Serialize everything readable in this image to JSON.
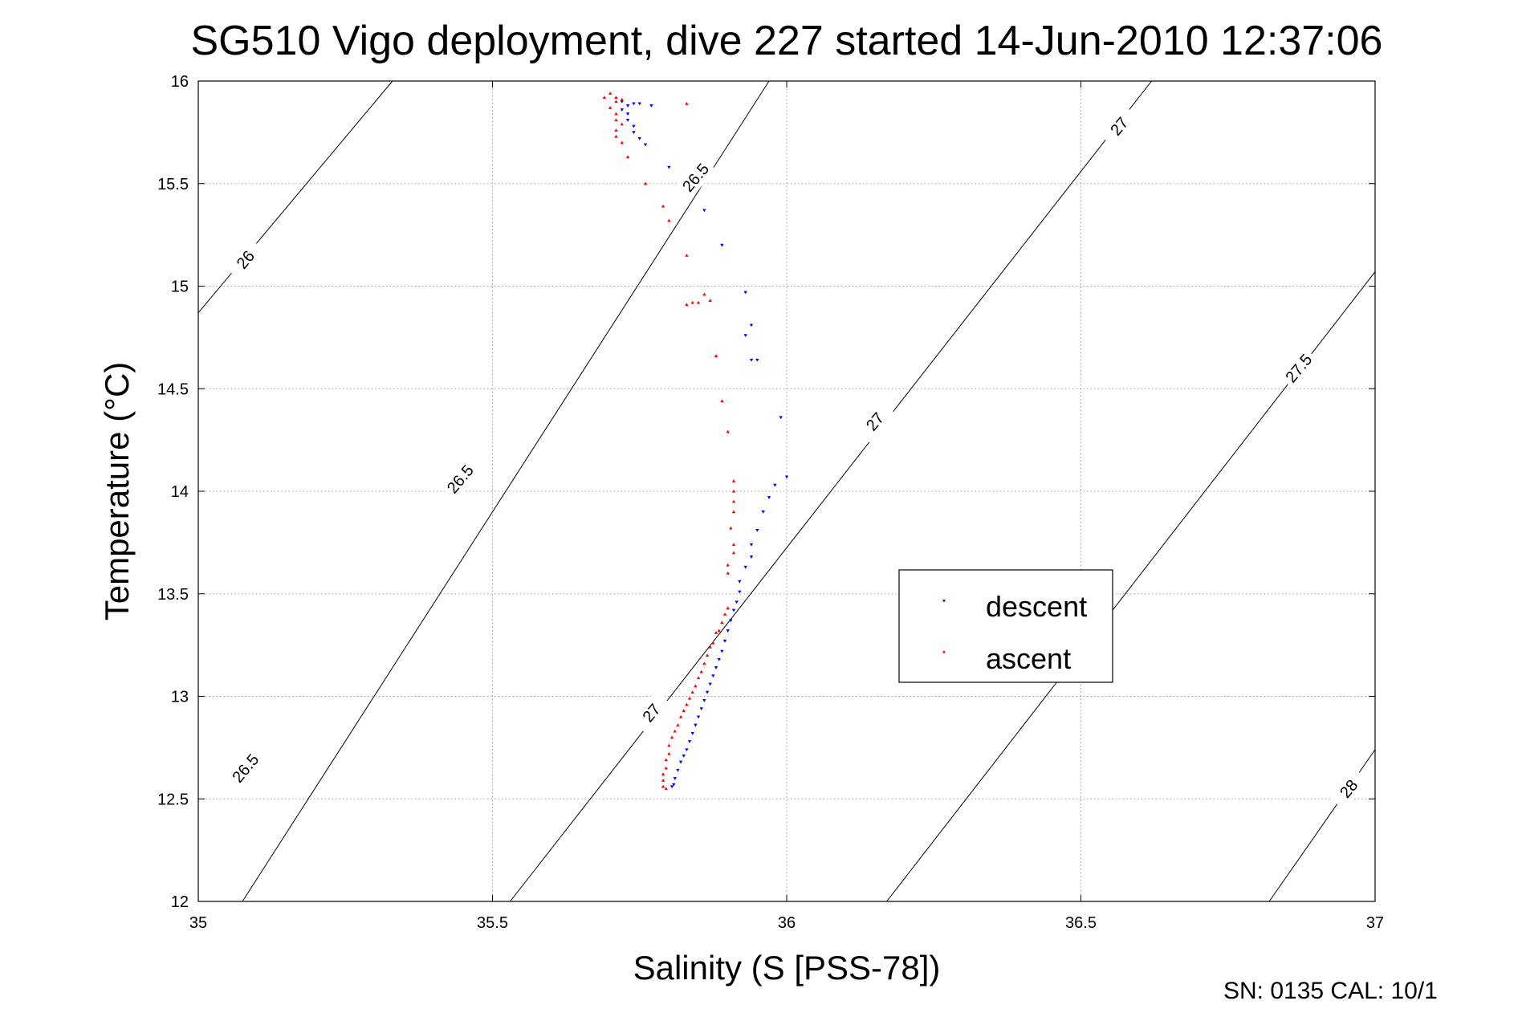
{
  "chart_data": {
    "type": "scatter",
    "title": "SG510 Vigo deployment, dive 227 started 14-Jun-2010 12:37:06",
    "xlabel": "Salinity (S [PSS-78])",
    "ylabel": "Temperature (°C)",
    "xlim": [
      35,
      37
    ],
    "ylim": [
      12,
      16
    ],
    "xticks": [
      35,
      35.5,
      36,
      36.5,
      37
    ],
    "xtick_labels": [
      "35",
      "35.5",
      "36",
      "36.5",
      "37"
    ],
    "yticks": [
      12,
      12.5,
      13,
      13.5,
      14,
      14.5,
      15,
      15.5,
      16
    ],
    "ytick_labels": [
      "12",
      "12.5",
      "13",
      "13.5",
      "14",
      "14.5",
      "15",
      "15.5",
      "16"
    ],
    "grid": true,
    "legend_position": "center-right",
    "footer": "SN: 0135  CAL: 10/1",
    "isopycnals": [
      {
        "label": "26",
        "points": [
          [
            35,
            14.87
          ],
          [
            35.33,
            16
          ]
        ],
        "label_at": [
          35.08,
          15.13
        ]
      },
      {
        "label": "26.5",
        "points": [
          [
            35.075,
            12
          ],
          [
            35.97,
            16
          ]
        ],
        "label_at": [
          35.445,
          14.06
        ]
      },
      {
        "label": "26.5",
        "points": [
          [
            35,
            12.4
          ]
        ],
        "label_at": [
          35.08,
          12.65
        ]
      },
      {
        "label": "26.5",
        "points": [],
        "label_at": [
          35.845,
          15.53
        ]
      },
      {
        "label": "27",
        "points": [
          [
            35.53,
            12
          ],
          [
            36.62,
            16
          ]
        ],
        "label_at": [
          35.77,
          12.92
        ]
      },
      {
        "label": "27",
        "points": [],
        "label_at": [
          36.15,
          14.34
        ]
      },
      {
        "label": "27",
        "points": [],
        "label_at": [
          36.565,
          15.78
        ]
      },
      {
        "label": "27.5",
        "points": [
          [
            36.17,
            12
          ],
          [
            37,
            15.07
          ]
        ],
        "label_at": [
          36.87,
          14.6
        ]
      },
      {
        "label": "28",
        "points": [
          [
            36.82,
            12
          ],
          [
            37,
            12.74
          ]
        ],
        "label_at": [
          36.955,
          12.55
        ]
      }
    ],
    "series": [
      {
        "name": "descent",
        "color": "#0000ff",
        "marker": "triangle-down",
        "points": [
          [
            35.72,
            15.9
          ],
          [
            35.73,
            15.88
          ],
          [
            35.74,
            15.89
          ],
          [
            35.75,
            15.89
          ],
          [
            35.77,
            15.88
          ],
          [
            35.72,
            15.86
          ],
          [
            35.73,
            15.84
          ],
          [
            35.73,
            15.81
          ],
          [
            35.74,
            15.78
          ],
          [
            35.74,
            15.75
          ],
          [
            35.75,
            15.72
          ],
          [
            35.76,
            15.69
          ],
          [
            35.8,
            15.58
          ],
          [
            35.86,
            15.37
          ],
          [
            35.89,
            15.2
          ],
          [
            35.93,
            14.97
          ],
          [
            35.94,
            14.81
          ],
          [
            35.93,
            14.76
          ],
          [
            35.94,
            14.64
          ],
          [
            35.95,
            14.64
          ],
          [
            35.99,
            14.36
          ],
          [
            36.0,
            14.07
          ],
          [
            35.98,
            14.03
          ],
          [
            35.97,
            13.97
          ],
          [
            35.96,
            13.9
          ],
          [
            35.95,
            13.81
          ],
          [
            35.94,
            13.74
          ],
          [
            35.94,
            13.68
          ],
          [
            35.93,
            13.63
          ],
          [
            35.92,
            13.56
          ],
          [
            35.92,
            13.51
          ],
          [
            35.915,
            13.46
          ],
          [
            35.91,
            13.42
          ],
          [
            35.905,
            13.37
          ],
          [
            35.9,
            13.32
          ],
          [
            35.895,
            13.27
          ],
          [
            35.89,
            13.22
          ],
          [
            35.885,
            13.18
          ],
          [
            35.88,
            13.14
          ],
          [
            35.875,
            13.1
          ],
          [
            35.87,
            13.06
          ],
          [
            35.865,
            13.02
          ],
          [
            35.86,
            12.98
          ],
          [
            35.855,
            12.94
          ],
          [
            35.85,
            12.9
          ],
          [
            35.845,
            12.86
          ],
          [
            35.84,
            12.82
          ],
          [
            35.835,
            12.78
          ],
          [
            35.83,
            12.74
          ],
          [
            35.825,
            12.71
          ],
          [
            35.82,
            12.68
          ],
          [
            35.815,
            12.64
          ],
          [
            35.81,
            12.6
          ],
          [
            35.808,
            12.57
          ],
          [
            35.805,
            12.56
          ]
        ]
      },
      {
        "name": "ascent",
        "color": "#ff0000",
        "marker": "triangle-up",
        "points": [
          [
            35.7,
            15.94
          ],
          [
            35.71,
            15.92
          ],
          [
            35.71,
            15.9
          ],
          [
            35.72,
            15.91
          ],
          [
            35.69,
            15.92
          ],
          [
            35.7,
            15.87
          ],
          [
            35.71,
            15.84
          ],
          [
            35.71,
            15.81
          ],
          [
            35.72,
            15.79
          ],
          [
            35.71,
            15.76
          ],
          [
            35.71,
            15.73
          ],
          [
            35.72,
            15.7
          ],
          [
            35.73,
            15.63
          ],
          [
            35.76,
            15.5
          ],
          [
            35.79,
            15.39
          ],
          [
            35.8,
            15.32
          ],
          [
            35.83,
            15.89
          ],
          [
            35.83,
            15.15
          ],
          [
            35.86,
            14.96
          ],
          [
            35.87,
            14.93
          ],
          [
            35.85,
            14.92
          ],
          [
            35.84,
            14.92
          ],
          [
            35.83,
            14.91
          ],
          [
            35.88,
            14.66
          ],
          [
            35.89,
            14.44
          ],
          [
            35.9,
            14.29
          ],
          [
            35.91,
            14.05
          ],
          [
            35.91,
            14.0
          ],
          [
            35.91,
            13.95
          ],
          [
            35.91,
            13.9
          ],
          [
            35.905,
            13.82
          ],
          [
            35.91,
            13.74
          ],
          [
            35.91,
            13.7
          ],
          [
            35.9,
            13.64
          ],
          [
            35.9,
            13.6
          ],
          [
            35.9,
            13.43
          ],
          [
            35.895,
            13.4
          ],
          [
            35.89,
            13.36
          ],
          [
            35.885,
            13.32
          ],
          [
            35.88,
            13.31
          ],
          [
            35.875,
            13.26
          ],
          [
            35.87,
            13.24
          ],
          [
            35.865,
            13.2
          ],
          [
            35.86,
            13.16
          ],
          [
            35.855,
            13.12
          ],
          [
            35.85,
            13.09
          ],
          [
            35.845,
            13.05
          ],
          [
            35.84,
            13.02
          ],
          [
            35.835,
            12.99
          ],
          [
            35.83,
            12.96
          ],
          [
            35.825,
            12.93
          ],
          [
            35.82,
            12.9
          ],
          [
            35.815,
            12.86
          ],
          [
            35.81,
            12.83
          ],
          [
            35.805,
            12.8
          ],
          [
            35.8,
            12.76
          ],
          [
            35.8,
            12.72
          ],
          [
            35.795,
            12.69
          ],
          [
            35.795,
            12.65
          ],
          [
            35.79,
            12.62
          ],
          [
            35.79,
            12.59
          ],
          [
            35.79,
            12.56
          ],
          [
            35.795,
            12.55
          ]
        ]
      }
    ]
  }
}
